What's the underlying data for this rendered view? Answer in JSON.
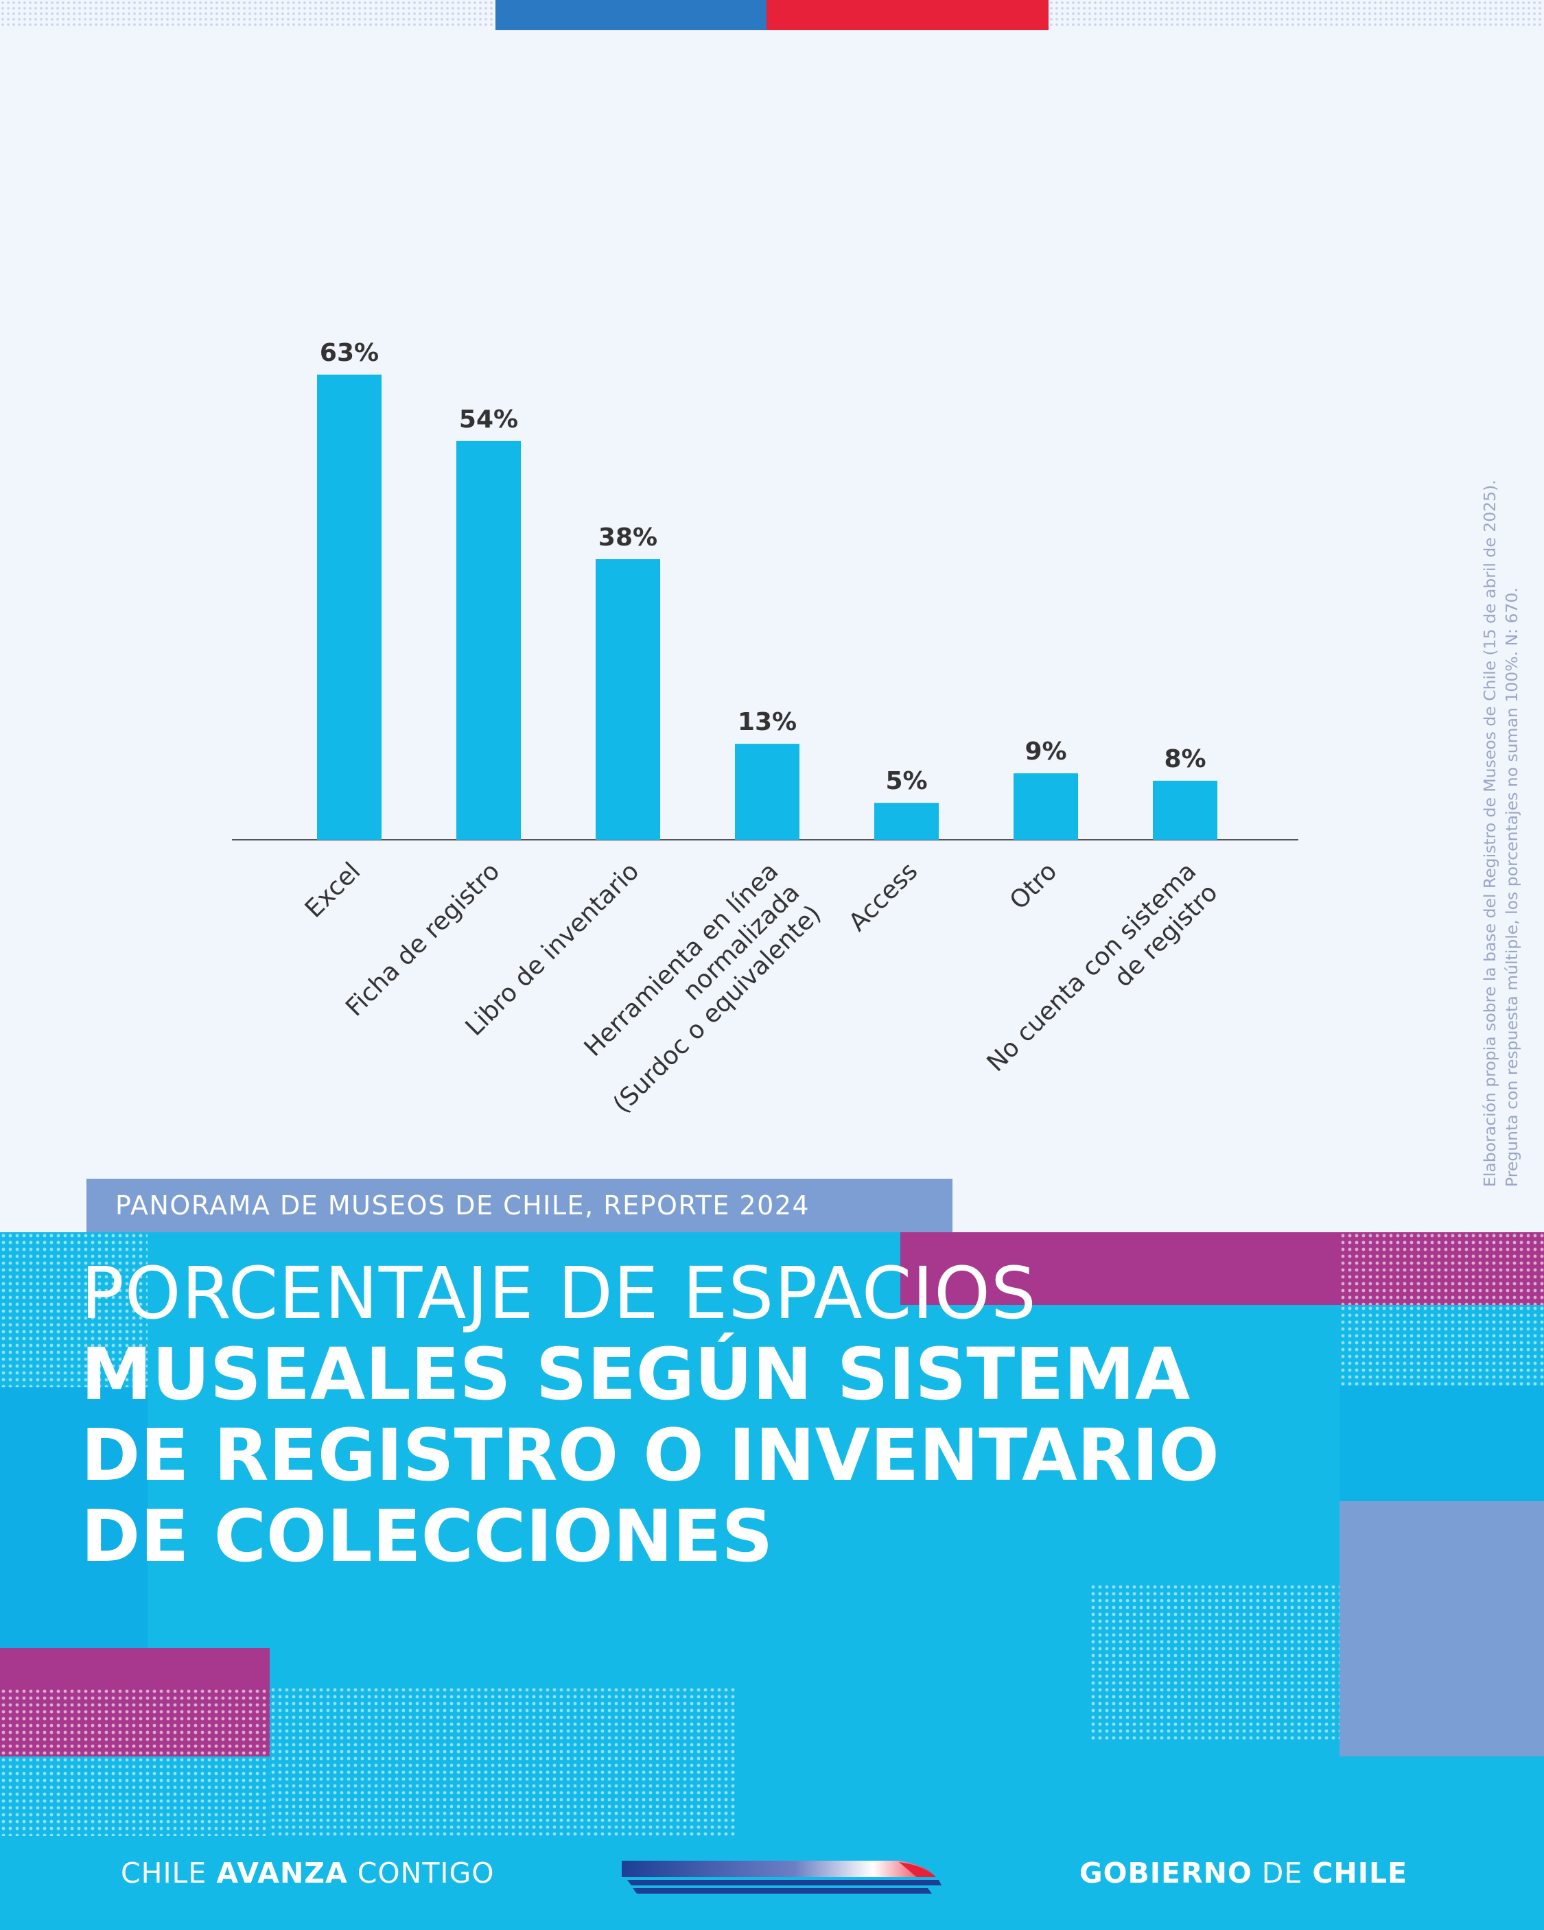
{
  "report_tag": "PANORAMA DE MUSEOS DE CHILE, REPORTE 2024",
  "title": {
    "line1": "PORCENTAJE DE ESPACIOS",
    "line2": "MUSEALES SEGÚN SISTEMA",
    "line3": "DE REGISTRO O INVENTARIO",
    "line4": "DE COLECCIONES"
  },
  "source_note": {
    "line1": "Elaboración propia sobre la base del Registro de Museos de Chile (15 de abril de 2025).",
    "line2": "Pregunta con respuesta múltiple, los porcentajes no suman 100%. N: 670."
  },
  "footer": {
    "left_prefix": "CHILE ",
    "left_bold": "AVANZA",
    "left_suffix": " CONTIGO",
    "right_bold1": "GOBIERNO",
    "right_mid": " DE ",
    "right_bold2": "CHILE"
  },
  "colors": {
    "bar": "#12b8e8",
    "flag_blue": "#2a79c2",
    "flag_red": "#e8213a",
    "band": "#14b9e8",
    "magenta": "#a8388e",
    "lavender": "#7d9ed3"
  },
  "icons": {
    "train": "train-logo-icon"
  },
  "chart_data": {
    "type": "bar",
    "categories": [
      [
        "Excel"
      ],
      [
        "Ficha de registro"
      ],
      [
        "Libro de inventario"
      ],
      [
        "Herramienta en línea",
        "normalizada",
        "(Surdoc o equivalente)"
      ],
      [
        "Access"
      ],
      [
        "Otro"
      ],
      [
        "No cuenta con sistema",
        "de registro"
      ]
    ],
    "values": [
      63,
      54,
      38,
      13,
      5,
      9,
      8
    ],
    "value_labels": [
      "63%",
      "54%",
      "38%",
      "13%",
      "5%",
      "9%",
      "8%"
    ],
    "ylim": [
      0,
      63
    ],
    "grid": false,
    "legend": "none"
  }
}
